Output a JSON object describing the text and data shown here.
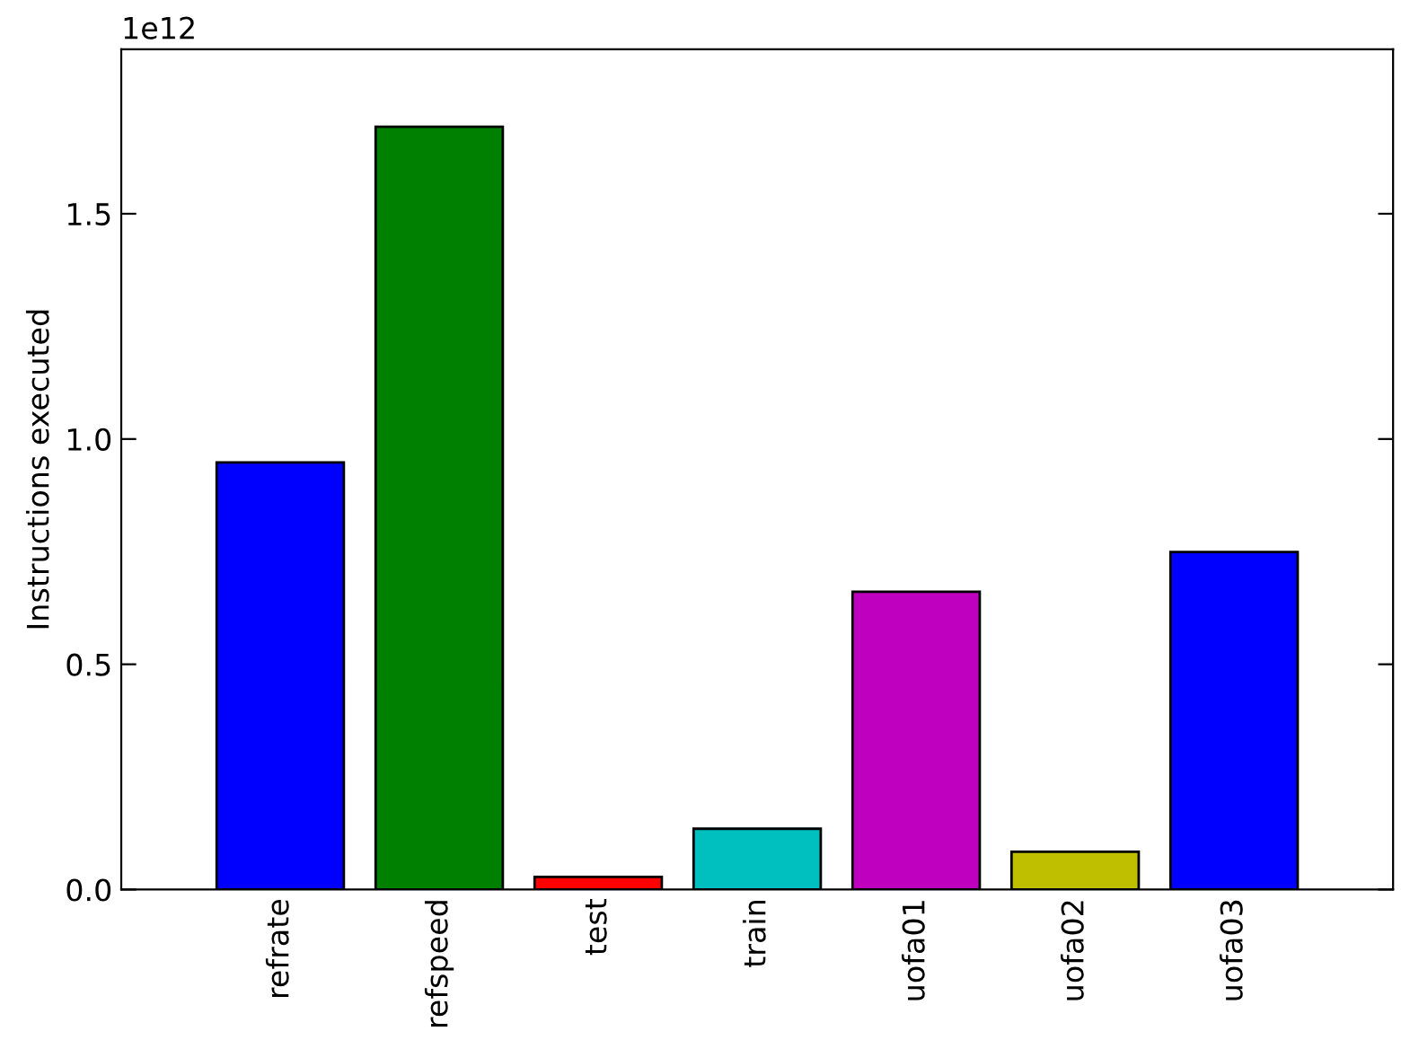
{
  "chart_data": {
    "type": "bar",
    "ylabel": "Instructions executed",
    "categories": [
      "refrate",
      "refspeed",
      "test",
      "train",
      "uofa01",
      "uofa02",
      "uofa03"
    ],
    "values": [
      0.948,
      1.693,
      0.028,
      0.135,
      0.661,
      0.084,
      0.749
    ],
    "colors": [
      "#0000ff",
      "#008000",
      "#ff0000",
      "#00bfbf",
      "#bf00bf",
      "#bfbf00",
      "#0000ff"
    ],
    "ylim": [
      0,
      1.865
    ],
    "yticks": [
      {
        "value": 0,
        "label": "0.0"
      },
      0.5,
      {
        "value": 1,
        "label": "1.0"
      },
      1.5
    ],
    "annotations": [
      "1e12"
    ],
    "grid": false,
    "legend": false
  }
}
